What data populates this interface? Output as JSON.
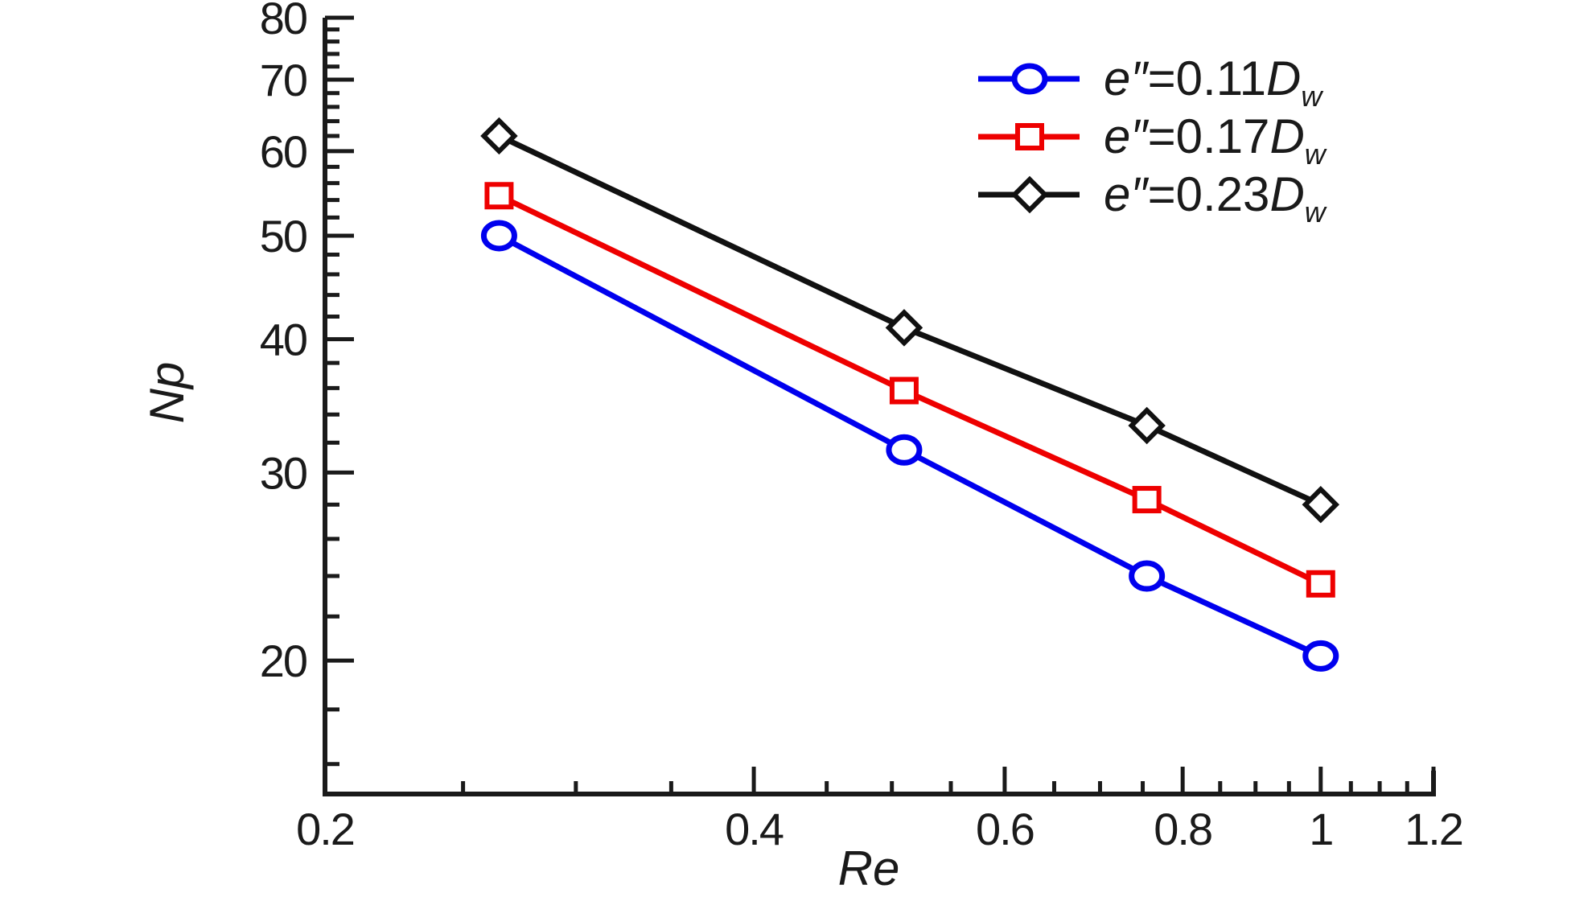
{
  "chart_data": {
    "type": "line",
    "xlabel": "Re",
    "ylabel": "Np",
    "x_scale": "log",
    "y_scale": "log",
    "xlim": [
      0.2,
      1.2
    ],
    "ylim": [
      15,
      80
    ],
    "x_ticks": [
      0.2,
      0.4,
      0.6,
      0.8,
      1,
      1.2
    ],
    "x_tick_labels": [
      "0.2",
      "0.4",
      "0.6",
      "0.8",
      "1",
      "1.2"
    ],
    "y_ticks": [
      20,
      30,
      40,
      50,
      60,
      70,
      80
    ],
    "y_tick_labels": [
      "20",
      "30",
      "40",
      "50",
      "60",
      "70",
      "80"
    ],
    "grid": false,
    "legend_position": "top-right",
    "series": [
      {
        "name": "e″=0.11Dw",
        "legend": {
          "var": "e″",
          "eq": "=0.11",
          "sym": "D",
          "sub": "w"
        },
        "color": "#0000ee",
        "marker": "circle",
        "x": [
          0.265,
          0.51,
          0.755,
          1.0
        ],
        "y": [
          50.0,
          31.5,
          24.0,
          20.2
        ]
      },
      {
        "name": "e″=0.17Dw",
        "legend": {
          "var": "e″",
          "eq": "=0.17",
          "sym": "D",
          "sub": "w"
        },
        "color": "#ee0000",
        "marker": "square",
        "x": [
          0.265,
          0.51,
          0.755,
          1.0
        ],
        "y": [
          54.5,
          35.8,
          28.3,
          23.6
        ]
      },
      {
        "name": "e″=0.23Dw",
        "legend": {
          "var": "e″",
          "eq": "=0.23",
          "sym": "D",
          "sub": "w"
        },
        "color": "#111111",
        "marker": "diamond",
        "x": [
          0.265,
          0.51,
          0.755,
          1.0
        ],
        "y": [
          62.0,
          41.0,
          33.2,
          28.0
        ]
      }
    ]
  }
}
